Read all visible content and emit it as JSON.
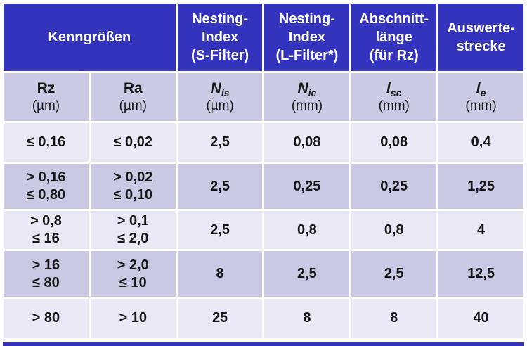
{
  "colors": {
    "header_blue": "#3433bd",
    "row_light": "#e9e8f4",
    "row_medium": "#cbc8e3",
    "header_text": "#ffffff",
    "body_text": "#161616"
  },
  "header": {
    "kenngroessen": "Kenngrößen",
    "nesting_s": "Nesting-\nIndex\n(S-Filter)",
    "nesting_l": "Nesting-\nIndex\n(L-Filter*)",
    "abschnitt": "Abschnitt-\nlänge\n(für Rz)",
    "auswerte": "Auswerte-\nstrecke"
  },
  "subheader": [
    {
      "sym": "Rz",
      "sub": "",
      "unit": "(µm)"
    },
    {
      "sym": "Ra",
      "sub": "",
      "unit": "(µm)"
    },
    {
      "sym": "N",
      "sub": "is",
      "unit": "(µm)"
    },
    {
      "sym": "N",
      "sub": "ic",
      "unit": "(mm)"
    },
    {
      "sym": "l",
      "sub": "sc",
      "unit": "(mm)"
    },
    {
      "sym": "l",
      "sub": "e",
      "unit": "(mm)"
    }
  ],
  "rows": [
    {
      "cells": [
        "≤ 0,16",
        "≤ 0,02",
        "2,5",
        "0,08",
        "0,08",
        "0,4"
      ]
    },
    {
      "cells": [
        "> 0,16\n≤ 0,80",
        "> 0,02\n≤ 0,10",
        "2,5",
        "0,25",
        "0,25",
        "1,25"
      ]
    },
    {
      "cells": [
        "> 0,8\n≤ 16",
        "> 0,1\n≤ 2,0",
        "2,5",
        "0,8",
        "0,8",
        "4"
      ]
    },
    {
      "cells": [
        "> 16\n≤ 80",
        "> 2,0\n≤ 10",
        "8",
        "2,5",
        "2,5",
        "12,5"
      ]
    },
    {
      "cells": [
        "> 80",
        "> 10",
        "25",
        "8",
        "8",
        "40"
      ]
    }
  ]
}
